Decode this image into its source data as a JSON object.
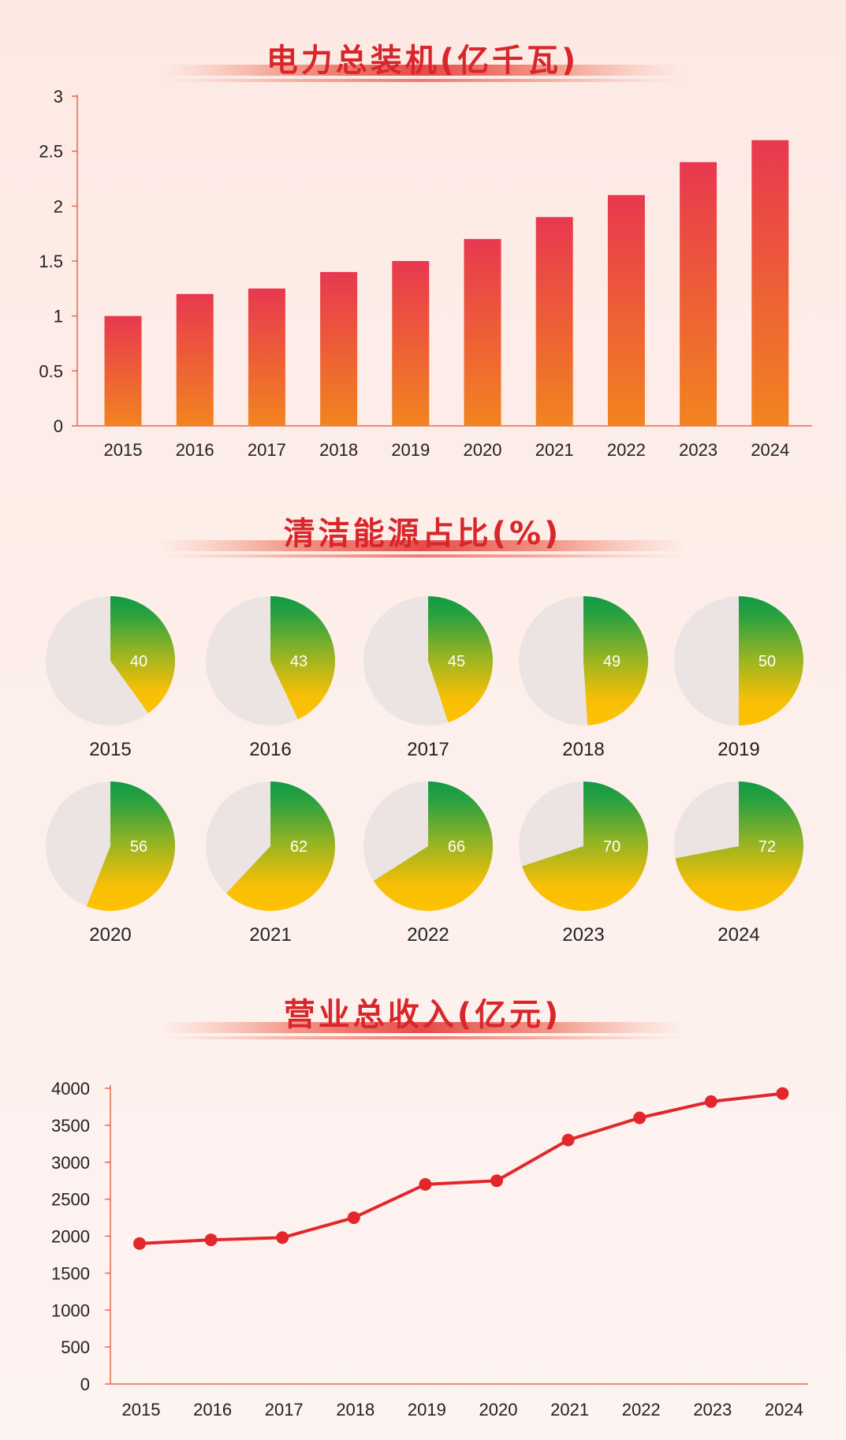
{
  "colors": {
    "title": "#d8262b",
    "bar_top": "#e8384f",
    "bar_bottom": "#f2841f",
    "pie_green": "#119a45",
    "pie_yellow": "#ffc200",
    "pie_bg": "#ebe4e3",
    "line": "#e1272c",
    "axis": "#e86a4a"
  },
  "chart_data": [
    {
      "type": "bar",
      "title": "电力总装机(亿千瓦)",
      "categories": [
        "2015",
        "2016",
        "2017",
        "2018",
        "2019",
        "2020",
        "2021",
        "2022",
        "2023",
        "2024"
      ],
      "values": [
        1.0,
        1.2,
        1.25,
        1.4,
        1.5,
        1.7,
        1.9,
        2.1,
        2.4,
        2.6
      ],
      "ylim": [
        0,
        3
      ],
      "yticks": [
        "0",
        "0.5",
        "1",
        "1.5",
        "2",
        "2.5",
        "3"
      ],
      "grid": false
    },
    {
      "type": "pie",
      "title": "清洁能源占比(%)",
      "categories": [
        "2015",
        "2016",
        "2017",
        "2018",
        "2019",
        "2020",
        "2021",
        "2022",
        "2023",
        "2024"
      ],
      "values": [
        40,
        43,
        45,
        49,
        50,
        56,
        62,
        66,
        70,
        72
      ]
    },
    {
      "type": "line",
      "title": "营业总收入(亿元)",
      "categories": [
        "2015",
        "2016",
        "2017",
        "2018",
        "2019",
        "2020",
        "2021",
        "2022",
        "2023",
        "2024"
      ],
      "values": [
        1900,
        1950,
        1980,
        2250,
        2700,
        2750,
        3300,
        3600,
        3820,
        3930
      ],
      "ylim": [
        0,
        4000
      ],
      "yticks": [
        "0",
        "500",
        "1000",
        "1500",
        "2000",
        "2500",
        "3000",
        "3500",
        "4000"
      ],
      "grid": false
    }
  ]
}
